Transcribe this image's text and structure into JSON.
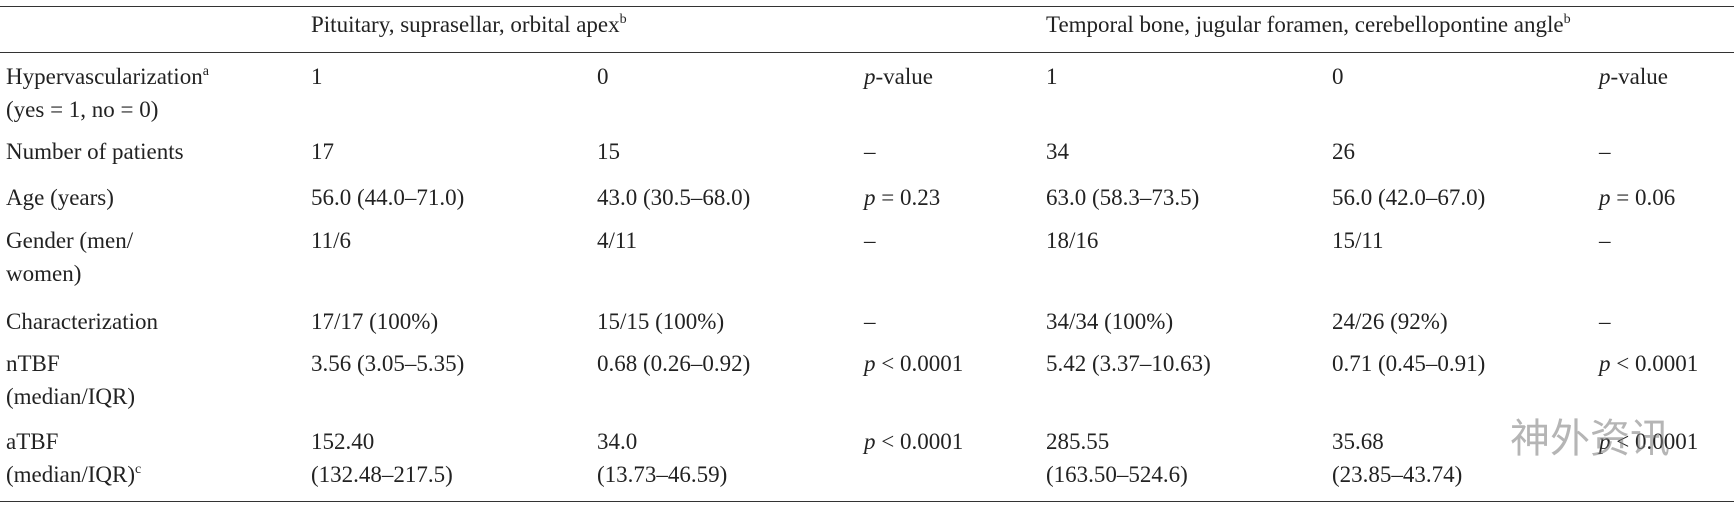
{
  "header_groups": [
    {
      "text": "Pituitary, suprasellar, orbital apex",
      "sup": "b"
    },
    {
      "text": "Temporal bone, jugular foramen, cerebellopontine angle",
      "sup": "b"
    }
  ],
  "rows": [
    {
      "cells": [
        [
          {
            "text": "Hypervascularization",
            "sup": "a"
          },
          "(yes = 1, no = 0)"
        ],
        [
          "1"
        ],
        [
          "0"
        ],
        [
          "p-value"
        ],
        [
          "1"
        ],
        [
          "0"
        ],
        [
          "p-value"
        ]
      ]
    },
    {
      "cells": [
        [
          "Number of patients"
        ],
        [
          "17"
        ],
        [
          "15"
        ],
        [
          "–"
        ],
        [
          "34"
        ],
        [
          "26"
        ],
        [
          "–"
        ]
      ]
    },
    {
      "cells": [
        [
          "Age (years)"
        ],
        [
          "56.0 (44.0–71.0)"
        ],
        [
          "43.0 (30.5–68.0)"
        ],
        [
          "p = 0.23"
        ],
        [
          "63.0 (58.3–73.5)"
        ],
        [
          "56.0 (42.0–67.0)"
        ],
        [
          "p = 0.06"
        ]
      ]
    },
    {
      "cells": [
        [
          "Gender (men/",
          "women)"
        ],
        [
          "11/6"
        ],
        [
          "4/11"
        ],
        [
          "–"
        ],
        [
          "18/16"
        ],
        [
          "15/11"
        ],
        [
          "–"
        ]
      ]
    },
    {
      "cells": [
        [
          "Characterization"
        ],
        [
          "17/17 (100%)"
        ],
        [
          "15/15 (100%)"
        ],
        [
          "–"
        ],
        [
          "34/34 (100%)"
        ],
        [
          "24/26 (92%)"
        ],
        [
          "–"
        ]
      ]
    },
    {
      "cells": [
        [
          "nTBF",
          "(median/IQR)"
        ],
        [
          "3.56 (3.05–5.35)"
        ],
        [
          "0.68 (0.26–0.92)"
        ],
        [
          "p < 0.0001"
        ],
        [
          "5.42 (3.37–10.63)"
        ],
        [
          "0.71 (0.45–0.91)"
        ],
        [
          "p < 0.0001"
        ]
      ]
    },
    {
      "cells": [
        [
          "aTBF",
          {
            "text": "(median/IQR)",
            "sup": "c"
          }
        ],
        [
          "152.40",
          "(132.48–217.5)"
        ],
        [
          "34.0",
          "(13.73–46.59)"
        ],
        [
          "p < 0.0001"
        ],
        [
          "285.55",
          "(163.50–524.6)"
        ],
        [
          "35.68",
          "(23.85–43.74)"
        ],
        [
          "p < 0.0001"
        ]
      ]
    }
  ],
  "watermark": "神外资讯"
}
